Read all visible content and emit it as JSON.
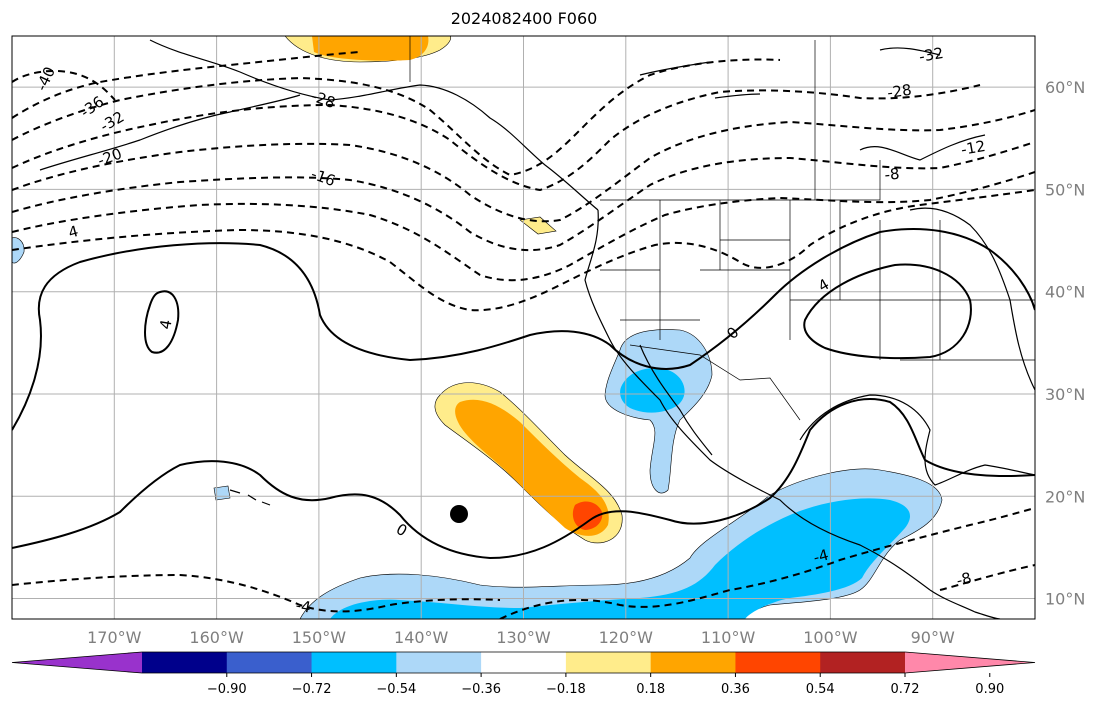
{
  "title": "2024082400 F060",
  "map": {
    "lon_range": [
      -180,
      -80
    ],
    "lat_range": [
      8,
      65
    ],
    "grid": true,
    "lon_ticks": [
      "170°W",
      "160°W",
      "150°W",
      "140°W",
      "130°W",
      "120°W",
      "110°W",
      "100°W",
      "90°W"
    ],
    "lat_ticks": [
      "10°N",
      "20°N",
      "30°N",
      "40°N",
      "50°N",
      "60°N"
    ]
  },
  "contour_labels": [
    "-40",
    "-36",
    "-32",
    "-28",
    "-20",
    "-16",
    "4",
    "4",
    "0",
    "0",
    "-4",
    "-4",
    "-8",
    "-12",
    "-28",
    "-32",
    "-8",
    "4"
  ],
  "colorbar": {
    "ticks": [
      "−0.90",
      "−0.72",
      "−0.54",
      "−0.36",
      "−0.18",
      "0.18",
      "0.36",
      "0.54",
      "0.72",
      "0.90"
    ],
    "colors": [
      "#9932cc",
      "#00008b",
      "#3a5fcd",
      "#00bfff",
      "#add8f8",
      "#ffffff",
      "#ffec8b",
      "#ffa500",
      "#ff4500",
      "#b22222",
      "#ff88aa"
    ]
  },
  "colors": {
    "shade_light_blue": "#add8f8",
    "shade_blue": "#00bfff",
    "shade_yellow": "#ffec8b",
    "shade_orange": "#ffa500",
    "shade_red": "#ff4500",
    "grid": "#b0b0b0"
  },
  "marker": "black-dot"
}
